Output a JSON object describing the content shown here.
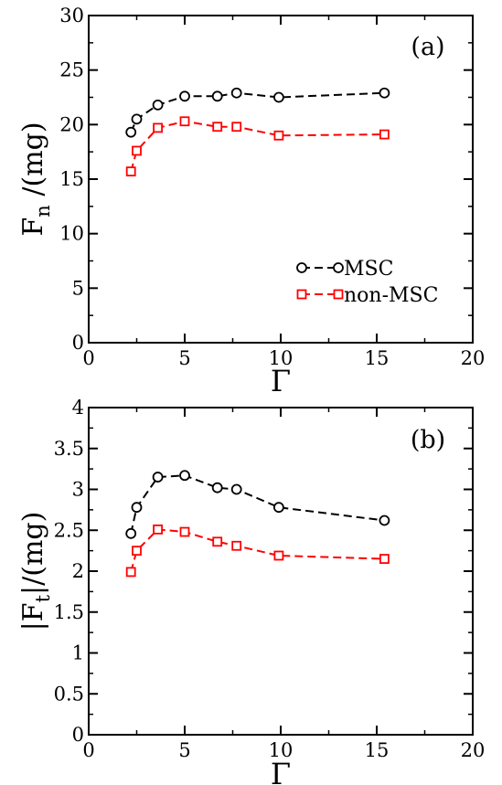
{
  "chart_data": [
    {
      "type": "line",
      "panel_label": "(a)",
      "xlabel": "Γ",
      "ylabel": "F",
      "ylabel_sub": "n",
      "ylabel_suffix": " /(mg)",
      "xlim": [
        0,
        20
      ],
      "ylim": [
        0,
        30
      ],
      "xticks": [
        0,
        5,
        10,
        15,
        20
      ],
      "yticks": [
        0,
        5,
        10,
        15,
        20,
        25,
        30
      ],
      "legend": "lower-right",
      "series": [
        {
          "name": "MSC",
          "marker": "circle",
          "color": "#000000",
          "x": [
            2.2,
            2.5,
            3.6,
            5.0,
            6.7,
            7.7,
            9.9,
            15.4
          ],
          "y": [
            19.3,
            20.5,
            21.8,
            22.6,
            22.6,
            22.9,
            22.5,
            22.9
          ]
        },
        {
          "name": "non-MSC",
          "marker": "square",
          "color": "#ff0000",
          "x": [
            2.2,
            2.5,
            3.6,
            5.0,
            6.7,
            7.7,
            9.9,
            15.4
          ],
          "y": [
            15.7,
            17.6,
            19.7,
            20.3,
            19.8,
            19.8,
            19.0,
            19.1
          ]
        }
      ]
    },
    {
      "type": "line",
      "panel_label": "(b)",
      "xlabel": "Γ",
      "ylabel": "|F",
      "ylabel_sub": "t",
      "ylabel_suffix": "|/(mg)",
      "xlim": [
        0,
        20
      ],
      "ylim": [
        0,
        4
      ],
      "xticks": [
        0,
        5,
        10,
        15,
        20
      ],
      "yticks": [
        0,
        0.5,
        1,
        1.5,
        2,
        2.5,
        3,
        3.5,
        4
      ],
      "series": [
        {
          "name": "MSC",
          "marker": "circle",
          "color": "#000000",
          "x": [
            2.2,
            2.5,
            3.6,
            5.0,
            6.7,
            7.7,
            9.9,
            15.4
          ],
          "y": [
            2.46,
            2.78,
            3.15,
            3.17,
            3.02,
            3.0,
            2.78,
            2.62
          ]
        },
        {
          "name": "non-MSC",
          "marker": "square",
          "color": "#ff0000",
          "x": [
            2.2,
            2.5,
            3.6,
            5.0,
            6.7,
            7.7,
            9.9,
            15.4
          ],
          "y": [
            1.99,
            2.25,
            2.51,
            2.48,
            2.36,
            2.31,
            2.19,
            2.15
          ]
        }
      ]
    }
  ]
}
